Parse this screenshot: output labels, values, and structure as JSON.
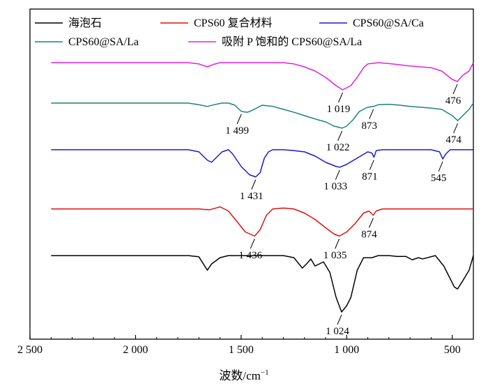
{
  "chart_data": {
    "type": "line",
    "xlabel": "波数/cm",
    "xlabel_sup": "−1",
    "xlim": [
      2500,
      400
    ],
    "x_reversed": true,
    "xticks": [
      {
        "value": 2500,
        "label": "2 500"
      },
      {
        "value": 2000,
        "label": "2 000"
      },
      {
        "value": 1500,
        "label": "1 500"
      },
      {
        "value": 1000,
        "label": "1 000"
      },
      {
        "value": 500,
        "label": "500"
      }
    ],
    "y_axis_ticks": false,
    "legend": {
      "placement": "top",
      "columns": 2
    },
    "series": [
      {
        "name": "海泡石",
        "color": "#000000",
        "baseline": 0,
        "points": [
          [
            2400,
            0
          ],
          [
            2000,
            0
          ],
          [
            1750,
            0
          ],
          [
            1700,
            -0.03
          ],
          [
            1660,
            -0.35
          ],
          [
            1640,
            -0.2
          ],
          [
            1600,
            -0.05
          ],
          [
            1560,
            0
          ],
          [
            1500,
            0
          ],
          [
            1450,
            0
          ],
          [
            1400,
            0
          ],
          [
            1300,
            0
          ],
          [
            1250,
            -0.05
          ],
          [
            1210,
            -0.3
          ],
          [
            1190,
            -0.2
          ],
          [
            1170,
            -0.08
          ],
          [
            1150,
            -0.25
          ],
          [
            1110,
            -0.15
          ],
          [
            1080,
            -0.4
          ],
          [
            1050,
            -1.0
          ],
          [
            1024,
            -1.35
          ],
          [
            1000,
            -1.2
          ],
          [
            980,
            -1.0
          ],
          [
            950,
            -0.35
          ],
          [
            920,
            -0.05
          ],
          [
            880,
            -0.05
          ],
          [
            850,
            0
          ],
          [
            800,
            0
          ],
          [
            760,
            -0.02
          ],
          [
            720,
            -0.02
          ],
          [
            690,
            -0.1
          ],
          [
            660,
            -0.05
          ],
          [
            640,
            -0.08
          ],
          [
            580,
            0
          ],
          [
            540,
            -0.25
          ],
          [
            490,
            -0.75
          ],
          [
            475,
            -0.8
          ],
          [
            450,
            -0.6
          ],
          [
            420,
            -0.35
          ],
          [
            400,
            0
          ]
        ]
      },
      {
        "name": "CPS60 复合材料",
        "color": "#dd1111",
        "baseline": 1,
        "points": [
          [
            2400,
            0
          ],
          [
            2000,
            0
          ],
          [
            1750,
            0
          ],
          [
            1700,
            0
          ],
          [
            1650,
            -0.02
          ],
          [
            1620,
            0.02
          ],
          [
            1600,
            0.05
          ],
          [
            1560,
            -0.05
          ],
          [
            1520,
            -0.3
          ],
          [
            1480,
            -0.55
          ],
          [
            1436,
            -0.65
          ],
          [
            1410,
            -0.5
          ],
          [
            1380,
            -0.15
          ],
          [
            1350,
            0
          ],
          [
            1300,
            0.02
          ],
          [
            1250,
            0
          ],
          [
            1200,
            -0.1
          ],
          [
            1150,
            -0.25
          ],
          [
            1100,
            -0.45
          ],
          [
            1060,
            -0.6
          ],
          [
            1035,
            -0.65
          ],
          [
            1000,
            -0.55
          ],
          [
            960,
            -0.35
          ],
          [
            920,
            -0.1
          ],
          [
            895,
            -0.05
          ],
          [
            880,
            -0.12
          ],
          [
            874,
            -0.15
          ],
          [
            860,
            -0.05
          ],
          [
            830,
            0
          ],
          [
            800,
            0
          ],
          [
            700,
            0
          ],
          [
            600,
            0
          ],
          [
            500,
            0
          ],
          [
            450,
            0
          ],
          [
            400,
            0
          ]
        ]
      },
      {
        "name": "CPS60@SA/Ca",
        "color": "#1a1acc",
        "baseline": 2,
        "points": [
          [
            2400,
            0
          ],
          [
            2000,
            0
          ],
          [
            1750,
            0
          ],
          [
            1700,
            -0.05
          ],
          [
            1660,
            -0.25
          ],
          [
            1640,
            -0.3
          ],
          [
            1610,
            -0.15
          ],
          [
            1590,
            -0.05
          ],
          [
            1560,
            0
          ],
          [
            1540,
            -0.1
          ],
          [
            1500,
            -0.4
          ],
          [
            1460,
            -0.6
          ],
          [
            1431,
            -0.65
          ],
          [
            1410,
            -0.55
          ],
          [
            1390,
            -0.2
          ],
          [
            1370,
            -0.05
          ],
          [
            1350,
            0
          ],
          [
            1300,
            0
          ],
          [
            1250,
            -0.02
          ],
          [
            1200,
            -0.05
          ],
          [
            1150,
            -0.15
          ],
          [
            1100,
            -0.3
          ],
          [
            1050,
            -0.4
          ],
          [
            1033,
            -0.42
          ],
          [
            1000,
            -0.35
          ],
          [
            950,
            -0.2
          ],
          [
            900,
            -0.05
          ],
          [
            880,
            -0.08
          ],
          [
            871,
            -0.18
          ],
          [
            860,
            -0.02
          ],
          [
            830,
            0
          ],
          [
            700,
            0
          ],
          [
            600,
            0
          ],
          [
            560,
            -0.05
          ],
          [
            545,
            -0.22
          ],
          [
            530,
            -0.1
          ],
          [
            510,
            0
          ],
          [
            480,
            0
          ],
          [
            450,
            0
          ],
          [
            420,
            0
          ],
          [
            400,
            0
          ]
        ]
      },
      {
        "name": "CPS60@SA/La",
        "color": "#1a8080",
        "baseline": 3,
        "points": [
          [
            2400,
            0
          ],
          [
            2000,
            0
          ],
          [
            1750,
            0
          ],
          [
            1700,
            -0.04
          ],
          [
            1660,
            -0.08
          ],
          [
            1620,
            -0.03
          ],
          [
            1590,
            0
          ],
          [
            1560,
            0
          ],
          [
            1530,
            -0.05
          ],
          [
            1499,
            -0.2
          ],
          [
            1470,
            -0.22
          ],
          [
            1450,
            -0.18
          ],
          [
            1400,
            -0.05
          ],
          [
            1350,
            -0.08
          ],
          [
            1300,
            -0.15
          ],
          [
            1250,
            -0.22
          ],
          [
            1200,
            -0.3
          ],
          [
            1150,
            -0.38
          ],
          [
            1100,
            -0.45
          ],
          [
            1060,
            -0.55
          ],
          [
            1022,
            -0.6
          ],
          [
            1000,
            -0.55
          ],
          [
            970,
            -0.4
          ],
          [
            940,
            -0.2
          ],
          [
            900,
            -0.1
          ],
          [
            873,
            -0.08
          ],
          [
            850,
            -0.04
          ],
          [
            800,
            -0.03
          ],
          [
            750,
            -0.05
          ],
          [
            700,
            -0.08
          ],
          [
            650,
            -0.1
          ],
          [
            600,
            -0.12
          ],
          [
            550,
            -0.15
          ],
          [
            500,
            -0.3
          ],
          [
            474,
            -0.42
          ],
          [
            450,
            -0.3
          ],
          [
            420,
            -0.15
          ],
          [
            400,
            0
          ]
        ]
      },
      {
        "name": "吸附 P 饱和的 CPS60@SA/La",
        "color": "#e020e0",
        "baseline": 4,
        "points": [
          [
            2400,
            0
          ],
          [
            2000,
            0
          ],
          [
            1750,
            0
          ],
          [
            1700,
            -0.03
          ],
          [
            1660,
            -0.1
          ],
          [
            1630,
            -0.04
          ],
          [
            1600,
            0
          ],
          [
            1500,
            0
          ],
          [
            1400,
            0
          ],
          [
            1300,
            0
          ],
          [
            1250,
            -0.03
          ],
          [
            1200,
            -0.1
          ],
          [
            1150,
            -0.2
          ],
          [
            1100,
            -0.35
          ],
          [
            1050,
            -0.55
          ],
          [
            1019,
            -0.65
          ],
          [
            1000,
            -0.6
          ],
          [
            980,
            -0.55
          ],
          [
            950,
            -0.35
          ],
          [
            920,
            -0.12
          ],
          [
            900,
            -0.03
          ],
          [
            850,
            0
          ],
          [
            800,
            -0.02
          ],
          [
            750,
            -0.05
          ],
          [
            700,
            -0.08
          ],
          [
            650,
            -0.1
          ],
          [
            600,
            -0.12
          ],
          [
            550,
            -0.2
          ],
          [
            500,
            -0.4
          ],
          [
            476,
            -0.45
          ],
          [
            450,
            -0.3
          ],
          [
            420,
            -0.2
          ],
          [
            400,
            0
          ]
        ]
      }
    ],
    "annotations": [
      {
        "text": "1 019",
        "x": 1019,
        "series": 4
      },
      {
        "text": "476",
        "x": 476,
        "series": 4
      },
      {
        "text": "1 499",
        "x": 1499,
        "series": 3
      },
      {
        "text": "1 022",
        "x": 1022,
        "series": 3
      },
      {
        "text": "873",
        "x": 873,
        "series": 3
      },
      {
        "text": "474",
        "x": 474,
        "series": 3
      },
      {
        "text": "1 431",
        "x": 1431,
        "series": 2
      },
      {
        "text": "1 033",
        "x": 1033,
        "series": 2
      },
      {
        "text": "871",
        "x": 871,
        "series": 2
      },
      {
        "text": "545",
        "x": 545,
        "series": 2
      },
      {
        "text": "1 436",
        "x": 1436,
        "series": 1
      },
      {
        "text": "1 035",
        "x": 1035,
        "series": 1
      },
      {
        "text": "874",
        "x": 874,
        "series": 1
      },
      {
        "text": "1 024",
        "x": 1024,
        "series": 0
      }
    ]
  }
}
